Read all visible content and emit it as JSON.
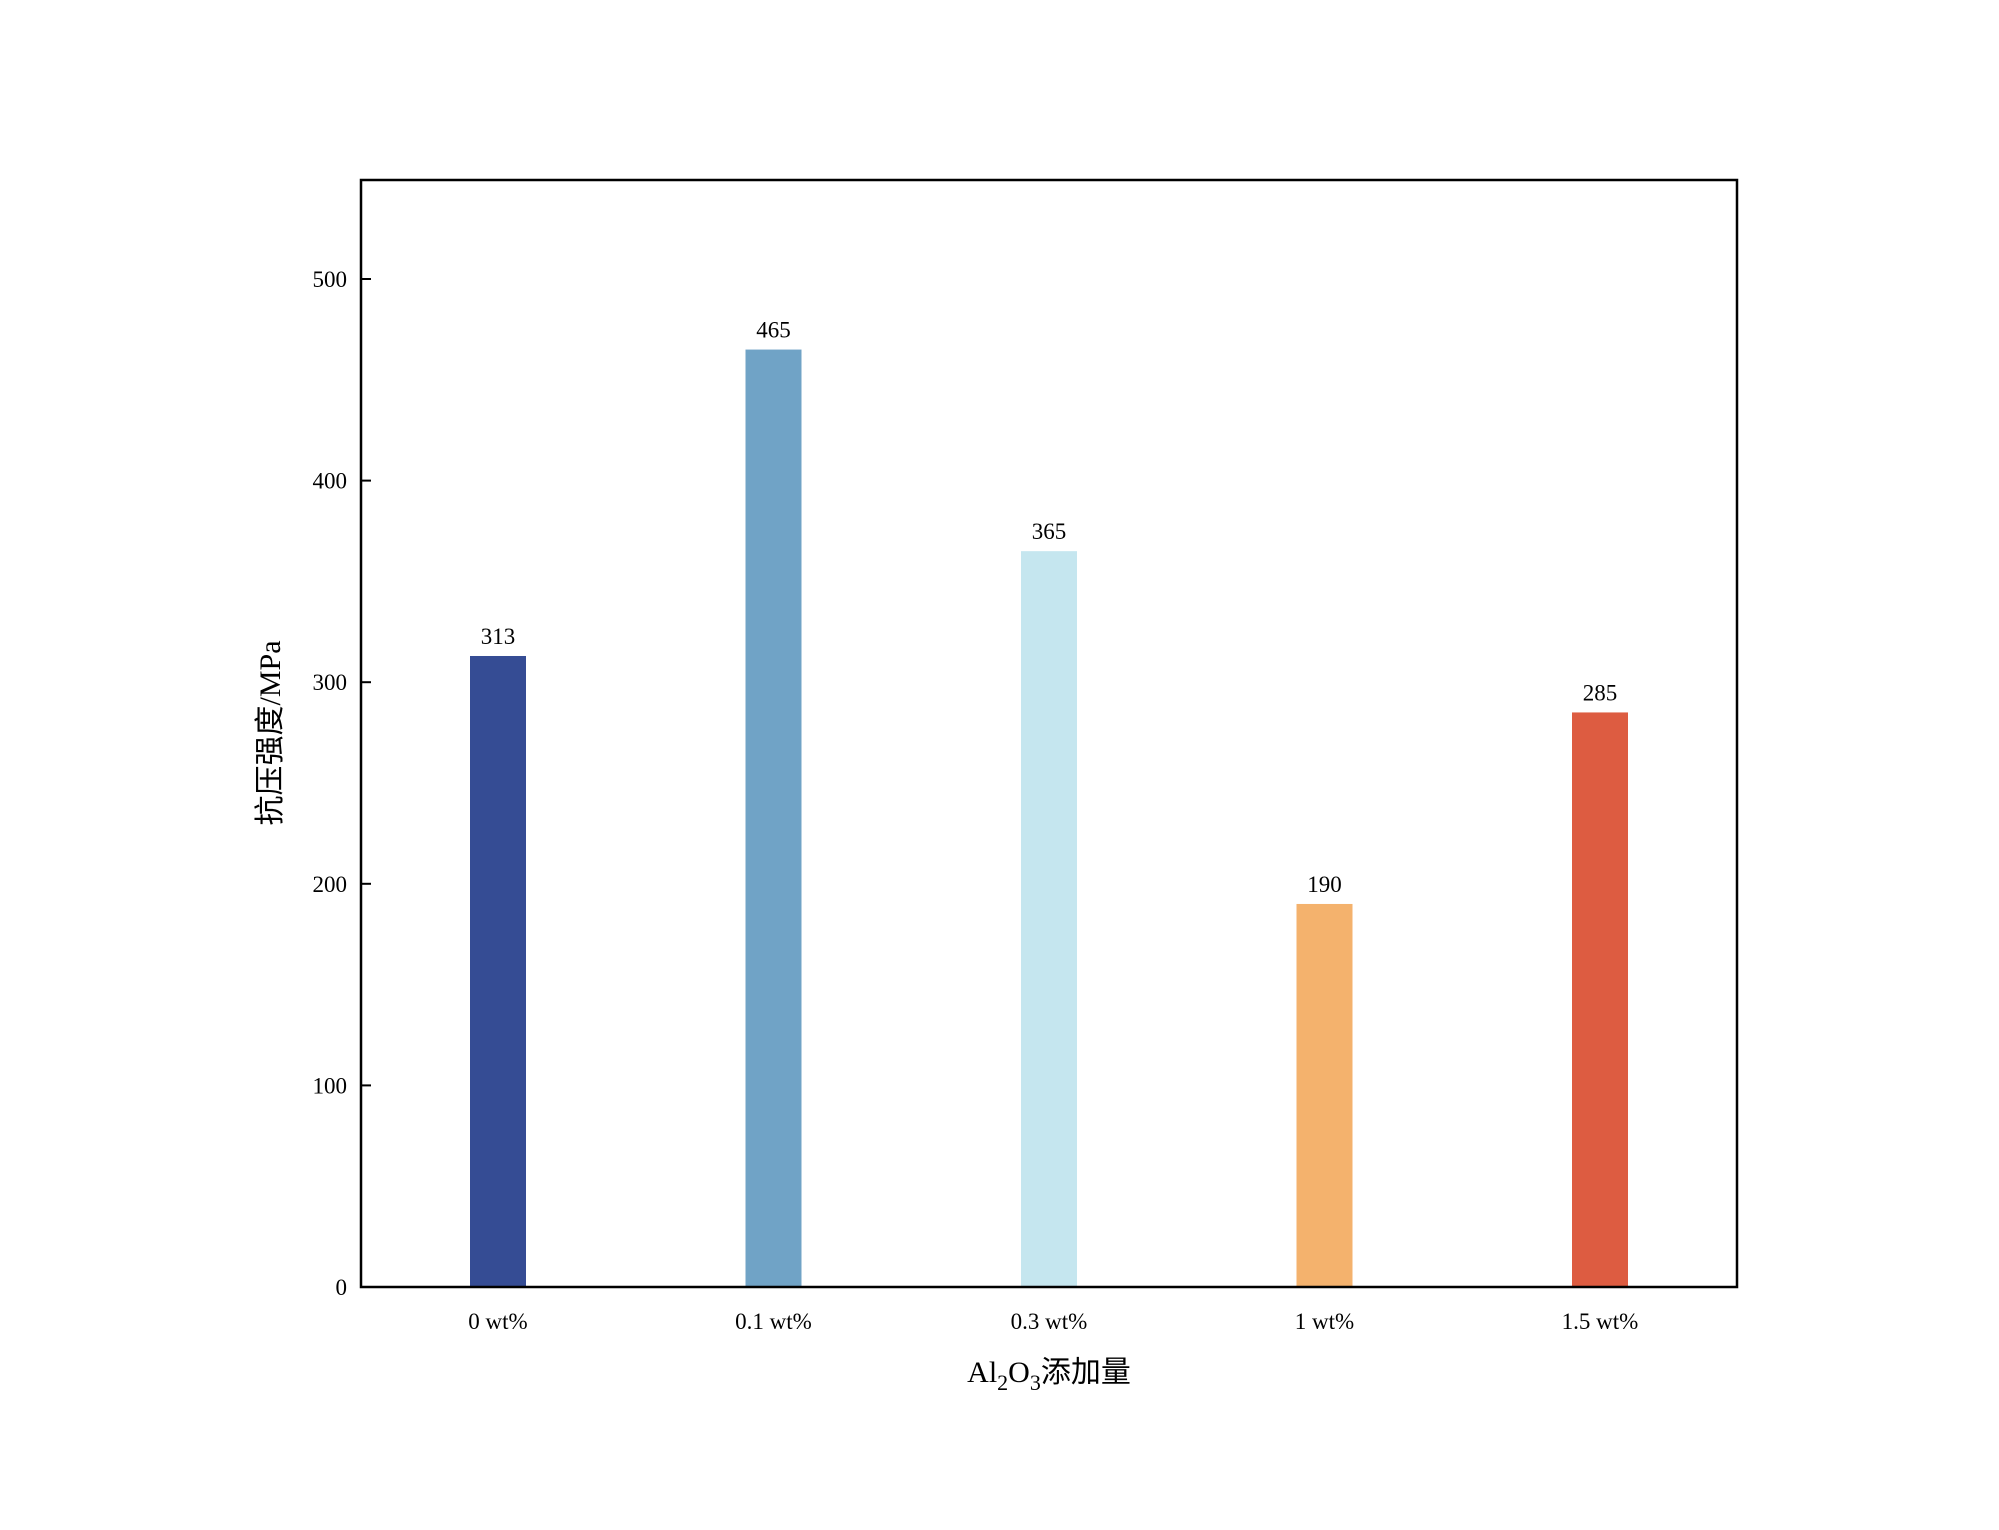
{
  "chart_data": {
    "type": "bar",
    "categories": [
      "0 wt%",
      "0.1 wt%",
      "0.3 wt%",
      "1 wt%",
      "1.5 wt%"
    ],
    "values": [
      313,
      465,
      365,
      190,
      285
    ],
    "data_labels": [
      "313",
      "465",
      "365",
      "190",
      "285"
    ],
    "colors": [
      "#354c94",
      "#70a3c6",
      "#c5e6ef",
      "#f4b26d",
      "#dd5c41"
    ],
    "ylabel": "抗压强度/MPa",
    "xlabel": {
      "main": "Al",
      "sub1": "2",
      "mid": "O",
      "sub2": "3",
      "tail": "添加量"
    },
    "yticks": [
      0,
      100,
      200,
      300,
      400,
      500
    ],
    "ytick_labels": [
      "0",
      "100",
      "200",
      "300",
      "400",
      "500"
    ],
    "ylim": [
      0,
      550
    ],
    "grid": false,
    "legend": "none"
  }
}
